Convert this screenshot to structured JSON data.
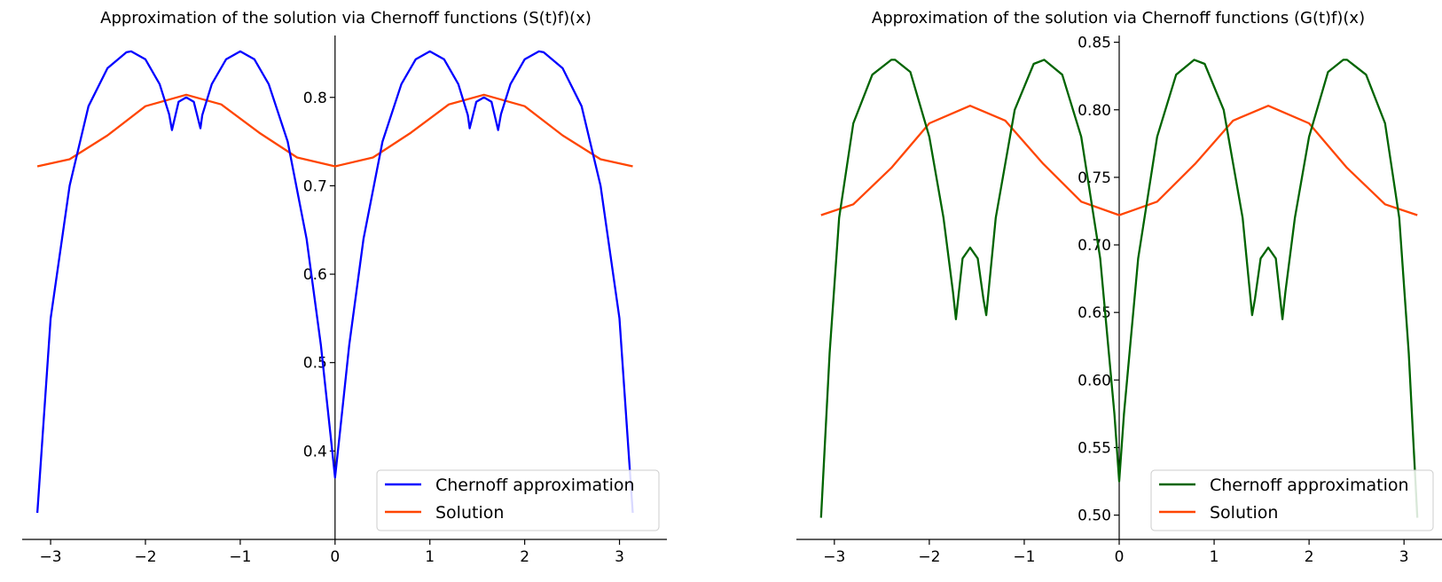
{
  "chart_data": [
    {
      "type": "line",
      "title": "Approximation of the solution via Chernoff functions (S(t)f)(x)",
      "xlabel": "",
      "ylabel": "",
      "xlim": [
        -3.3,
        3.5
      ],
      "ylim": [
        0.3,
        0.87
      ],
      "xticks": [
        -3,
        -2,
        -1,
        0,
        1,
        2,
        3
      ],
      "xtick_labels": [
        "−3",
        "−2",
        "−1",
        "0",
        "1",
        "2",
        "3"
      ],
      "yticks": [
        0.4,
        0.5,
        0.6,
        0.7,
        0.8
      ],
      "ytick_labels": [
        "0.4",
        "0.5",
        "0.6",
        "0.7",
        "0.8"
      ],
      "grid": false,
      "legend_position": "lower-right",
      "series": [
        {
          "name": "Chernoff approximation",
          "color": "#0000ff",
          "x": [
            -3.14,
            -3.0,
            -2.8,
            -2.6,
            -2.4,
            -2.2,
            -2.15,
            -2.0,
            -1.85,
            -1.75,
            -1.72,
            -1.65,
            -1.57,
            -1.49,
            -1.42,
            -1.4,
            -1.3,
            -1.15,
            -1.0,
            -0.85,
            -0.7,
            -0.5,
            -0.3,
            -0.15,
            -0.05,
            0.0,
            0.05,
            0.15,
            0.3,
            0.5,
            0.7,
            0.85,
            1.0,
            1.15,
            1.3,
            1.4,
            1.42,
            1.49,
            1.57,
            1.65,
            1.72,
            1.75,
            1.85,
            2.0,
            2.15,
            2.2,
            2.4,
            2.6,
            2.8,
            3.0,
            3.14
          ],
          "y": [
            0.33,
            0.55,
            0.7,
            0.79,
            0.833,
            0.851,
            0.852,
            0.843,
            0.815,
            0.781,
            0.763,
            0.795,
            0.8,
            0.795,
            0.765,
            0.78,
            0.815,
            0.843,
            0.852,
            0.843,
            0.815,
            0.75,
            0.64,
            0.52,
            0.42,
            0.37,
            0.42,
            0.52,
            0.64,
            0.75,
            0.815,
            0.843,
            0.852,
            0.843,
            0.815,
            0.78,
            0.765,
            0.795,
            0.8,
            0.795,
            0.763,
            0.781,
            0.815,
            0.843,
            0.852,
            0.851,
            0.833,
            0.79,
            0.7,
            0.55,
            0.33
          ]
        },
        {
          "name": "Solution",
          "color": "#ff4500",
          "x": [
            -3.14,
            -2.8,
            -2.4,
            -2.0,
            -1.57,
            -1.2,
            -0.8,
            -0.4,
            0.0,
            0.4,
            0.8,
            1.2,
            1.57,
            2.0,
            2.4,
            2.8,
            3.14
          ],
          "y": [
            0.722,
            0.73,
            0.757,
            0.79,
            0.803,
            0.792,
            0.76,
            0.732,
            0.722,
            0.732,
            0.76,
            0.792,
            0.803,
            0.79,
            0.757,
            0.73,
            0.722
          ]
        }
      ]
    },
    {
      "type": "line",
      "title": "Approximation of the solution via Chernoff functions (G(t)f)(x)",
      "xlabel": "",
      "ylabel": "",
      "xlim": [
        -3.4,
        3.4
      ],
      "ylim": [
        0.482,
        0.855
      ],
      "xticks": [
        -3,
        -2,
        -1,
        0,
        1,
        2,
        3
      ],
      "xtick_labels": [
        "−3",
        "−2",
        "−1",
        "0",
        "1",
        "2",
        "3"
      ],
      "yticks": [
        0.5,
        0.55,
        0.6,
        0.65,
        0.7,
        0.75,
        0.8,
        0.85
      ],
      "ytick_labels": [
        "0.50",
        "0.55",
        "0.60",
        "0.65",
        "0.70",
        "0.75",
        "0.80",
        "0.85"
      ],
      "grid": false,
      "legend_position": "lower-right",
      "series": [
        {
          "name": "Chernoff approximation",
          "color": "#006400",
          "x": [
            -3.14,
            -3.05,
            -2.95,
            -2.8,
            -2.6,
            -2.4,
            -2.36,
            -2.2,
            -2.0,
            -1.85,
            -1.75,
            -1.72,
            -1.65,
            -1.57,
            -1.49,
            -1.43,
            -1.4,
            -1.3,
            -1.1,
            -0.9,
            -0.79,
            -0.6,
            -0.4,
            -0.2,
            -0.05,
            0.0,
            0.05,
            0.2,
            0.4,
            0.6,
            0.79,
            0.9,
            1.1,
            1.3,
            1.4,
            1.43,
            1.49,
            1.57,
            1.65,
            1.72,
            1.75,
            1.85,
            2.0,
            2.2,
            2.36,
            2.4,
            2.6,
            2.8,
            2.95,
            3.05,
            3.14
          ],
          "y": [
            0.498,
            0.62,
            0.72,
            0.79,
            0.826,
            0.837,
            0.837,
            0.828,
            0.78,
            0.72,
            0.665,
            0.645,
            0.69,
            0.698,
            0.69,
            0.66,
            0.648,
            0.72,
            0.8,
            0.834,
            0.837,
            0.826,
            0.78,
            0.69,
            0.575,
            0.525,
            0.575,
            0.69,
            0.78,
            0.826,
            0.837,
            0.834,
            0.8,
            0.72,
            0.648,
            0.66,
            0.69,
            0.698,
            0.69,
            0.645,
            0.665,
            0.72,
            0.78,
            0.828,
            0.837,
            0.837,
            0.826,
            0.79,
            0.72,
            0.62,
            0.498
          ]
        },
        {
          "name": "Solution",
          "color": "#ff4500",
          "x": [
            -3.14,
            -2.8,
            -2.4,
            -2.0,
            -1.57,
            -1.2,
            -0.8,
            -0.4,
            0.0,
            0.4,
            0.8,
            1.2,
            1.57,
            2.0,
            2.4,
            2.8,
            3.14
          ],
          "y": [
            0.722,
            0.73,
            0.757,
            0.79,
            0.803,
            0.792,
            0.76,
            0.732,
            0.722,
            0.732,
            0.76,
            0.792,
            0.803,
            0.79,
            0.757,
            0.73,
            0.722
          ]
        }
      ]
    }
  ]
}
